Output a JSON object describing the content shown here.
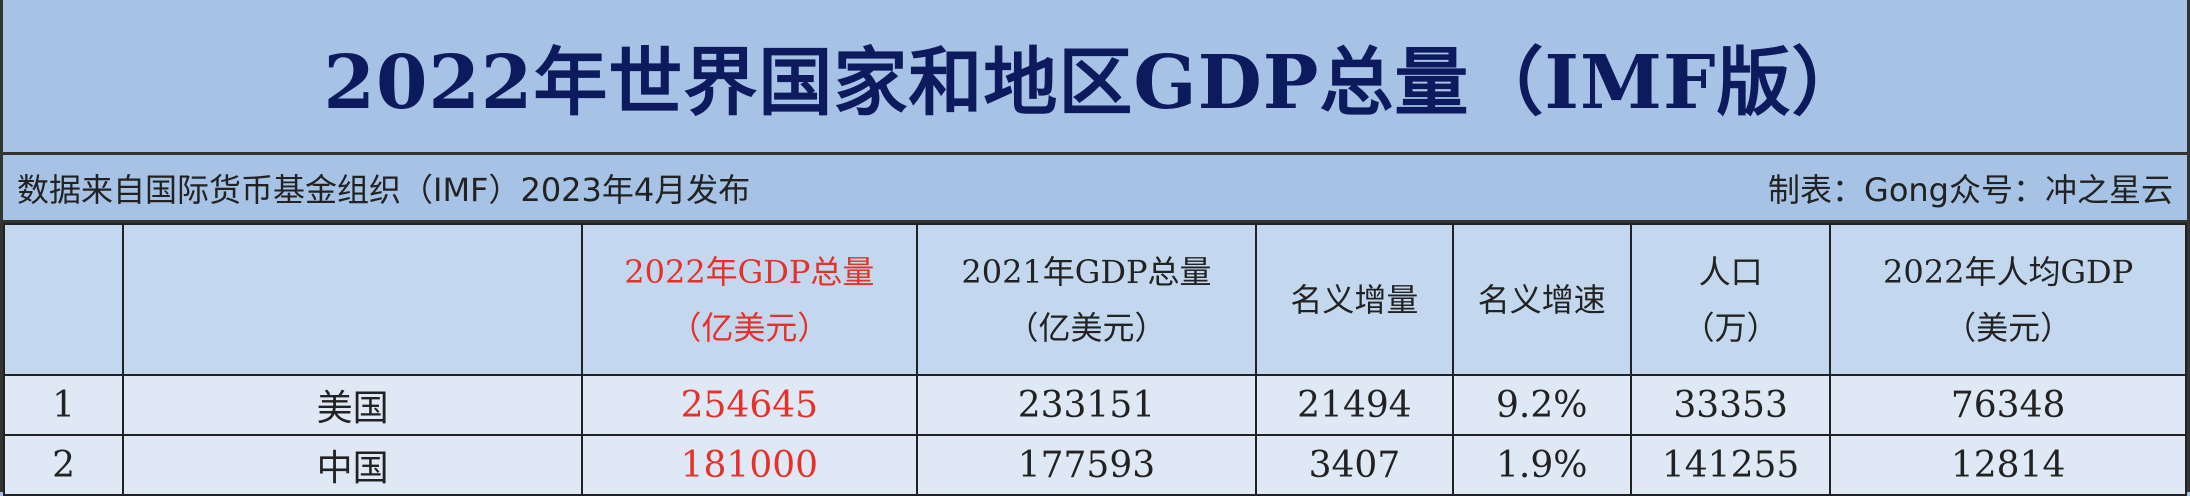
{
  "title": "2022年世界国家和地区GDP总量（IMF版）",
  "subtitle_left": "数据来自国际货币基金组织（IMF）2023年4月发布",
  "subtitle_right": "制表：Gong众号：冲之星云",
  "headers": [
    {
      "line1": "",
      "line2": ""
    },
    {
      "line1": "",
      "line2": ""
    },
    {
      "line1": "2022年GDP总量",
      "line2": "（亿美元）"
    },
    {
      "line1": "2021年GDP总量",
      "line2": "（亿美元）"
    },
    {
      "line1": "名义增量",
      "line2": ""
    },
    {
      "line1": "名义增速",
      "line2": ""
    },
    {
      "line1": "人口",
      "line2": "（万）"
    },
    {
      "line1": "2022年人均GDP",
      "line2": "（美元）"
    }
  ],
  "rows": [
    [
      "1",
      "美国",
      "254645",
      "233151",
      "21494",
      "9.2%",
      "33353",
      "76348"
    ],
    [
      "2",
      "中国",
      "181000",
      "177593",
      "3407",
      "1.9%",
      "141255",
      "12814"
    ]
  ],
  "colors": {
    "title": "#0d1a5e",
    "highlight": "#e8302a",
    "band": "#a6c3e6",
    "header": "#c3d8ee",
    "row": "#dfe9f5"
  }
}
